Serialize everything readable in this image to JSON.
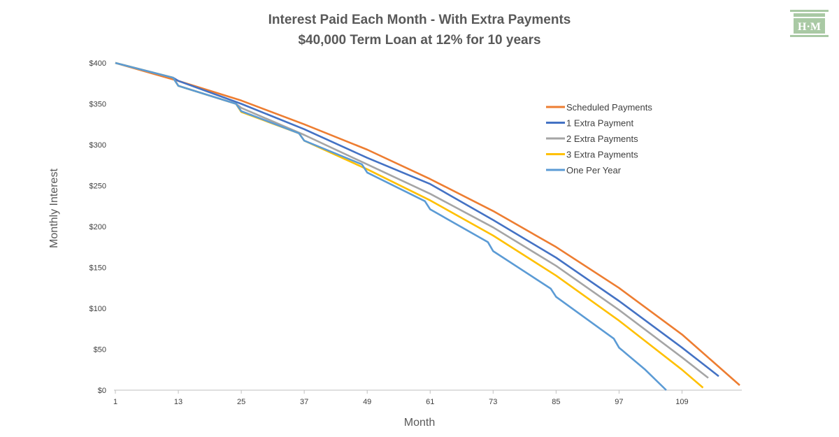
{
  "chart_data": {
    "type": "line",
    "title": "Interest Paid Each Month - With Extra Payments",
    "subtitle": "$40,000 Term Loan at 12% for 10 years",
    "xlabel": "Month",
    "ylabel": "Monthly Interest",
    "xlim": [
      1,
      120
    ],
    "ylim": [
      0,
      400
    ],
    "y_ticks": [
      "$0",
      "$50",
      "$100",
      "$150",
      "$200",
      "$250",
      "$300",
      "$350",
      "$400"
    ],
    "x_ticks": [
      "1",
      "13",
      "25",
      "37",
      "49",
      "61",
      "73",
      "85",
      "97",
      "109"
    ],
    "x_tick_values": [
      1,
      13,
      25,
      37,
      49,
      61,
      73,
      85,
      97,
      109
    ],
    "grid": false,
    "legend_position": "top-right",
    "series": [
      {
        "name": "Scheduled Payments",
        "color": "#ED7D31",
        "points": [
          [
            1,
            400
          ],
          [
            13,
            378
          ],
          [
            25,
            354
          ],
          [
            37,
            325
          ],
          [
            49,
            294
          ],
          [
            61,
            258
          ],
          [
            73,
            219
          ],
          [
            85,
            175
          ],
          [
            97,
            125
          ],
          [
            109,
            68
          ],
          [
            120,
            6
          ]
        ]
      },
      {
        "name": "1 Extra Payment",
        "color": "#4472C4",
        "points": [
          [
            1,
            400
          ],
          [
            12,
            382
          ],
          [
            13,
            378
          ],
          [
            25,
            350
          ],
          [
            37,
            319
          ],
          [
            49,
            284
          ],
          [
            61,
            252
          ],
          [
            73,
            208
          ],
          [
            85,
            162
          ],
          [
            97,
            109
          ],
          [
            109,
            52
          ],
          [
            116,
            17
          ]
        ]
      },
      {
        "name": "2 Extra Payments",
        "color": "#A5A5A5",
        "points": [
          [
            1,
            400
          ],
          [
            12,
            382
          ],
          [
            13,
            372
          ],
          [
            24,
            350
          ],
          [
            25,
            345
          ],
          [
            37,
            312
          ],
          [
            49,
            276
          ],
          [
            61,
            240
          ],
          [
            73,
            199
          ],
          [
            85,
            152
          ],
          [
            97,
            98
          ],
          [
            109,
            40
          ],
          [
            114,
            15
          ]
        ]
      },
      {
        "name": "3 Extra Payments",
        "color": "#FFC000",
        "points": [
          [
            1,
            400
          ],
          [
            12,
            382
          ],
          [
            13,
            372
          ],
          [
            24,
            350
          ],
          [
            25,
            340
          ],
          [
            36,
            314
          ],
          [
            37,
            305
          ],
          [
            49,
            270
          ],
          [
            61,
            232
          ],
          [
            73,
            189
          ],
          [
            85,
            140
          ],
          [
            97,
            85
          ],
          [
            109,
            25
          ],
          [
            113,
            3
          ]
        ]
      },
      {
        "name": "One Per Year",
        "color": "#5B9BD5",
        "points": [
          [
            1,
            400
          ],
          [
            12,
            382
          ],
          [
            13,
            372
          ],
          [
            24,
            350
          ],
          [
            25,
            341
          ],
          [
            36,
            314
          ],
          [
            37,
            305
          ],
          [
            48,
            276
          ],
          [
            49,
            266
          ],
          [
            60,
            231
          ],
          [
            61,
            221
          ],
          [
            72,
            181
          ],
          [
            73,
            170
          ],
          [
            84,
            124
          ],
          [
            85,
            114
          ],
          [
            96,
            63
          ],
          [
            97,
            52
          ],
          [
            102,
            25
          ],
          [
            106,
            0
          ]
        ]
      }
    ]
  }
}
